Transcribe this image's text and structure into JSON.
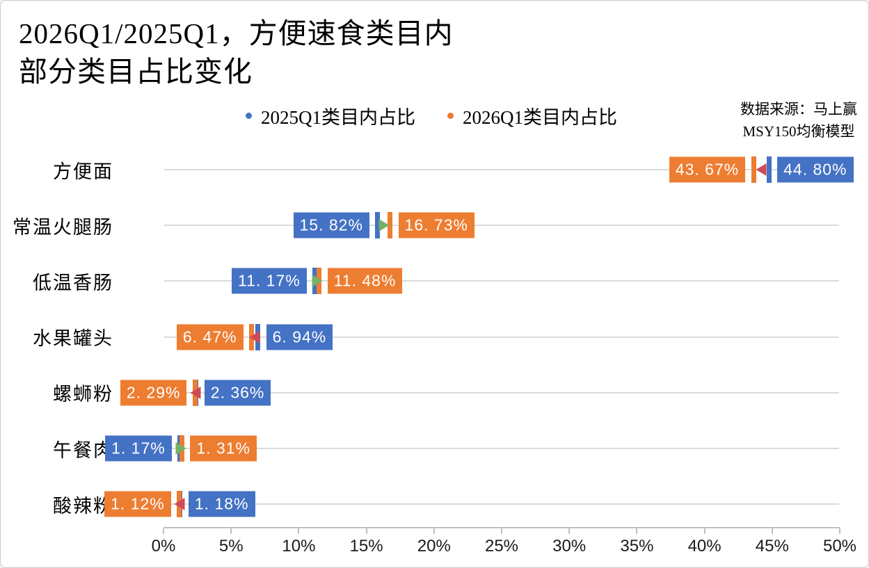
{
  "title": {
    "line1": "2026Q1/2025Q1，方便速食类目内",
    "line2": "部分类目占比变化"
  },
  "legend": {
    "items": [
      {
        "label": "2025Q1类目内占比",
        "color": "#4472C4"
      },
      {
        "label": "2026Q1类目内占比",
        "color": "#ED7D31"
      }
    ]
  },
  "source": {
    "line1": "数据来源：马上赢",
    "line2": "MSY150均衡模型"
  },
  "chart_data": {
    "type": "dumbbell",
    "title": "2026Q1/2025Q1，方便速食类目内部分类目占比变化",
    "categories": [
      "方便面",
      "常温火腿肠",
      "低温香肠",
      "水果罐头",
      "螺蛳粉",
      "午餐肉",
      "酸辣粉"
    ],
    "series": [
      {
        "name": "2025Q1类目内占比",
        "color": "#4472C4",
        "values": [
          44.8,
          15.82,
          11.17,
          6.94,
          2.36,
          1.17,
          1.18
        ],
        "labels": [
          "44. 80%",
          "15. 82%",
          "11. 17%",
          "6. 94%",
          "2. 36%",
          "1. 17%",
          "1. 18%"
        ]
      },
      {
        "name": "2026Q1类目内占比",
        "color": "#ED7D31",
        "values": [
          43.67,
          16.73,
          11.48,
          6.47,
          2.29,
          1.31,
          1.12
        ],
        "labels": [
          "43. 67%",
          "16. 73%",
          "11. 48%",
          "6. 47%",
          "2. 29%",
          "1. 31%",
          "1. 12%"
        ]
      }
    ],
    "xlim": [
      0,
      50
    ],
    "x_tick_labels": [
      "0%",
      "5%",
      "10%",
      "15%",
      "20%",
      "25%",
      "30%",
      "35%",
      "40%",
      "45%",
      "50%"
    ],
    "colors": {
      "increase_arrow": "#74B266",
      "decrease_arrow": "#CE4B55",
      "gridline": "#DADADA",
      "axis": "#BFBFBF"
    },
    "legend_position": "top",
    "grid": "horizontal-only"
  }
}
